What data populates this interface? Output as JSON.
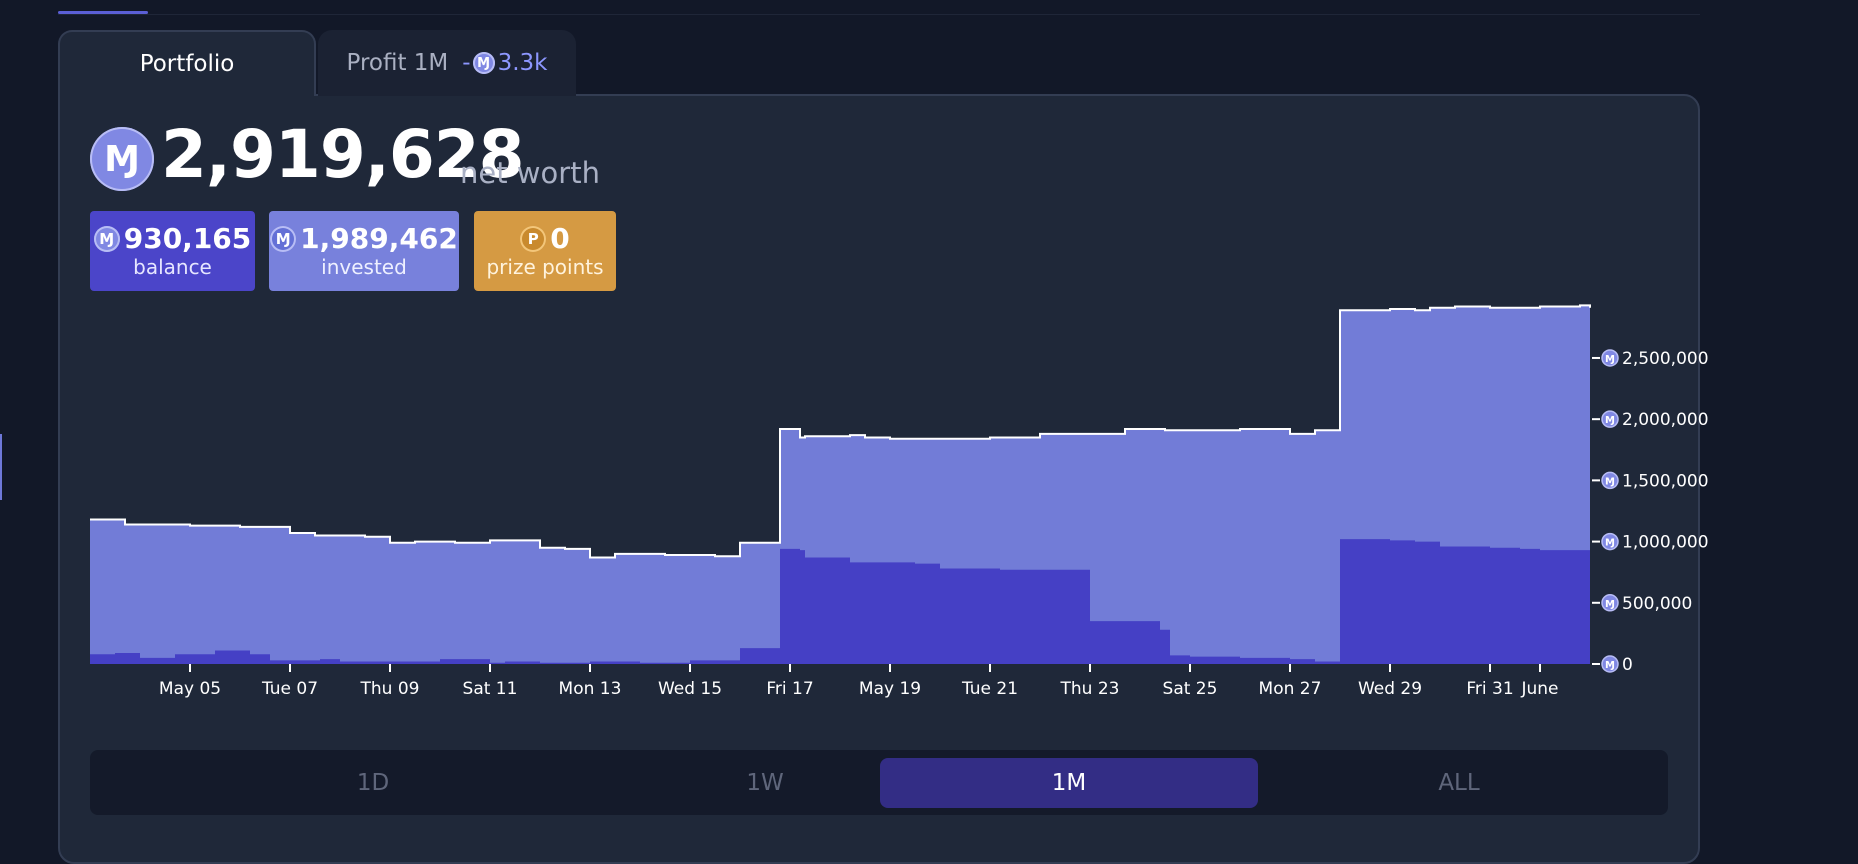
{
  "tabs": {
    "portfolio_label": "Portfolio",
    "profit_label": "Profit 1M",
    "profit_sign": "-",
    "profit_value": "3.3k"
  },
  "summary": {
    "currency_symbol": "Ɱ",
    "net_worth_value": "2,919,628",
    "net_worth_label": "net worth",
    "balance_value": "930,165",
    "balance_label": "balance",
    "invested_value": "1,989,462",
    "invested_label": "invested",
    "prize_symbol": "P",
    "prize_value": "0",
    "prize_label": "prize points"
  },
  "range_buttons": [
    {
      "label": "1D",
      "active": false
    },
    {
      "label": "1W",
      "active": false
    },
    {
      "label": "1M",
      "active": true
    },
    {
      "label": "ALL",
      "active": false
    }
  ],
  "colors": {
    "invested_area": "#727cd7",
    "balance_area": "#4540c5",
    "line": "#ffffff",
    "accent": "#5b5fd6",
    "prize": "#d59a43"
  },
  "chart_data": {
    "type": "area",
    "title": "",
    "xlabel": "",
    "ylabel": "",
    "y_axis_position": "right",
    "ylim": [
      0,
      2900000
    ],
    "y_ticks": [
      0,
      500000,
      1000000,
      1500000,
      2000000,
      2500000
    ],
    "y_tick_labels": [
      "0",
      "500,000",
      "1,000,000",
      "1,500,000",
      "2,000,000",
      "2,500,000"
    ],
    "x_unit": "days since May 3",
    "xlim": [
      0,
      30
    ],
    "x_ticks": [
      2,
      4,
      6,
      8,
      10,
      12,
      14,
      16,
      18,
      20,
      22,
      24,
      26,
      28,
      29
    ],
    "x_tick_labels": [
      "May 05",
      "Tue 07",
      "Thu 09",
      "Sat 11",
      "Mon 13",
      "Wed 15",
      "Fri 17",
      "May 19",
      "Tue 21",
      "Thu 23",
      "Sat 25",
      "Mon 27",
      "Wed 29",
      "Fri 31",
      "June"
    ],
    "series": [
      {
        "name": "net worth",
        "x": [
          0,
          0.7,
          2.0,
          3.0,
          4.0,
          4.5,
          5.5,
          6.0,
          6.5,
          7.3,
          8.0,
          9.0,
          9.5,
          10.0,
          10.5,
          11.5,
          12.5,
          13.0,
          13.8,
          14.2,
          14.3,
          15.2,
          15.5,
          16.0,
          17.0,
          18.0,
          19.0,
          20.0,
          20.7,
          21.5,
          22.5,
          23.0,
          24.0,
          24.5,
          25.0,
          26.0,
          26.5,
          26.8,
          27.3,
          28.0,
          29.0,
          29.8,
          30.0
        ],
        "y": [
          1180000,
          1140000,
          1130000,
          1120000,
          1070000,
          1050000,
          1040000,
          990000,
          1000000,
          990000,
          1010000,
          950000,
          940000,
          870000,
          900000,
          890000,
          880000,
          990000,
          1920000,
          1850000,
          1860000,
          1870000,
          1850000,
          1840000,
          1840000,
          1850000,
          1880000,
          1880000,
          1920000,
          1910000,
          1910000,
          1920000,
          1880000,
          1910000,
          2890000,
          2900000,
          2890000,
          2910000,
          2920000,
          2910000,
          2920000,
          2930000,
          2910000
        ]
      },
      {
        "name": "balance",
        "x": [
          0,
          0.5,
          1.0,
          1.7,
          2.5,
          3.2,
          3.6,
          4.6,
          5.0,
          6.0,
          7.0,
          8.0,
          8.3,
          9.0,
          10.0,
          11.0,
          12.0,
          13.0,
          13.8,
          14.2,
          14.3,
          15.2,
          16.0,
          16.5,
          17.0,
          18.2,
          19.0,
          20.0,
          20.7,
          21.4,
          21.6,
          22.0,
          23.0,
          24.0,
          24.5,
          25.0,
          26.0,
          26.5,
          27.0,
          28.0,
          28.6,
          29.0,
          30.0
        ],
        "y": [
          80000,
          90000,
          50000,
          80000,
          110000,
          80000,
          30000,
          40000,
          20000,
          20000,
          40000,
          10000,
          20000,
          10000,
          20000,
          10000,
          30000,
          130000,
          940000,
          930000,
          870000,
          830000,
          830000,
          820000,
          780000,
          770000,
          770000,
          350000,
          350000,
          280000,
          70000,
          60000,
          50000,
          40000,
          20000,
          1020000,
          1010000,
          1000000,
          960000,
          950000,
          940000,
          930000,
          930000
        ]
      }
    ]
  }
}
